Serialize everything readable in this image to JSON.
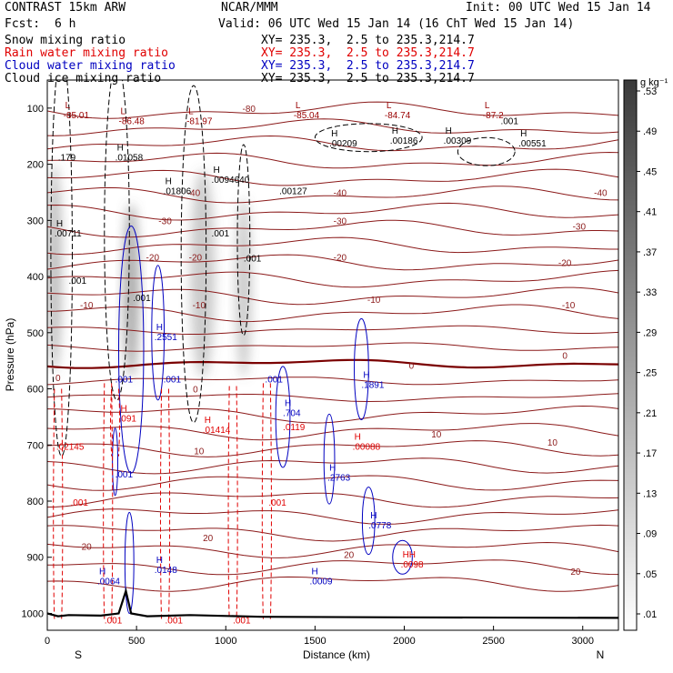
{
  "header": {
    "model": "CONTRAST 15km ARW",
    "org": "NCAR/MMM",
    "init": "Init: 00 UTC Wed 15 Jan 14",
    "fcst_label": "Fcst:",
    "fcst_value": "6 h",
    "valid": "Valid: 06 UTC Wed 15 Jan 14 (16 ChT Wed 15 Jan 14)",
    "fields": [
      {
        "name": "Snow mixing ratio",
        "xy": "XY= 235.3,  2.5 to 235.3,214.7",
        "color": "#000000"
      },
      {
        "name": "Rain water mixing ratio",
        "xy": "XY= 235.3,  2.5 to 235.3,214.7",
        "color": "#e00000"
      },
      {
        "name": "Cloud water mixing ratio",
        "xy": "XY= 235.3,  2.5 to 235.3,214.7",
        "color": "#0000c0"
      },
      {
        "name": "Cloud ice mixing ratio",
        "xy": "XY= 235.3,  2.5 to 235.3,214.7",
        "color": "#000000"
      }
    ]
  },
  "chart_data": {
    "type": "cross-section",
    "xlabel": "Distance (km)",
    "ylabel": "Pressure (hPa)",
    "xlim": [
      0,
      3200
    ],
    "ylim": [
      50,
      1030
    ],
    "xticks": [
      0,
      500,
      1000,
      1500,
      2000,
      2500,
      3000
    ],
    "yticks": [
      100,
      200,
      300,
      400,
      500,
      600,
      700,
      800,
      900,
      1000
    ],
    "x_end_labels": {
      "left": "S",
      "right": "N"
    },
    "colorbar": {
      "unit": "g kg⁻¹",
      "levels": [
        ".01",
        ".05",
        ".09",
        ".13",
        ".17",
        ".21",
        ".25",
        ".29",
        ".33",
        ".37",
        ".41",
        ".45",
        ".49",
        ".53"
      ]
    },
    "isotherms": [
      {
        "label": "-80",
        "x": 1130,
        "p": 100
      },
      {
        "label": "-40",
        "x": 820,
        "p": 250
      },
      {
        "label": "-40",
        "x": 1640,
        "p": 250
      },
      {
        "label": "-40",
        "x": 3100,
        "p": 250
      },
      {
        "label": "-30",
        "x": 660,
        "p": 300
      },
      {
        "label": "-30",
        "x": 1640,
        "p": 300
      },
      {
        "label": "-30",
        "x": 2980,
        "p": 310
      },
      {
        "label": "-20",
        "x": 590,
        "p": 365
      },
      {
        "label": "-20",
        "x": 830,
        "p": 365
      },
      {
        "label": "-20",
        "x": 1640,
        "p": 365
      },
      {
        "label": "-20",
        "x": 2900,
        "p": 375
      },
      {
        "label": "-10",
        "x": 220,
        "p": 450
      },
      {
        "label": "-10",
        "x": 850,
        "p": 450
      },
      {
        "label": "-10",
        "x": 1830,
        "p": 440
      },
      {
        "label": "-10",
        "x": 2920,
        "p": 450
      },
      {
        "label": "0",
        "x": 60,
        "p": 580
      },
      {
        "label": "0",
        "x": 830,
        "p": 600
      },
      {
        "label": "0",
        "x": 2040,
        "p": 558
      },
      {
        "label": "0",
        "x": 2900,
        "p": 540
      },
      {
        "label": "10",
        "x": 850,
        "p": 710
      },
      {
        "label": "10",
        "x": 2180,
        "p": 680
      },
      {
        "label": "10",
        "x": 2830,
        "p": 695
      },
      {
        "label": "20",
        "x": 220,
        "p": 880
      },
      {
        "label": "20",
        "x": 900,
        "p": 865
      },
      {
        "label": "20",
        "x": 1690,
        "p": 895
      },
      {
        "label": "20",
        "x": 2960,
        "p": 925
      }
    ],
    "extrema": [
      {
        "type": "L",
        "value": "-85.01",
        "x": 90,
        "p": 115,
        "color": "#990000"
      },
      {
        "type": "L",
        "value": "-86.48",
        "x": 400,
        "p": 125,
        "color": "#990000"
      },
      {
        "type": "L",
        "value": "-81.97",
        "x": 780,
        "p": 125,
        "color": "#990000"
      },
      {
        "type": "L",
        "value": "-85.04",
        "x": 1380,
        "p": 115,
        "color": "#990000"
      },
      {
        "type": "L",
        "value": "-84.74",
        "x": 1890,
        "p": 115,
        "color": "#990000"
      },
      {
        "type": "L",
        "value": "-87.2",
        "x": 2440,
        "p": 115,
        "color": "#990000"
      },
      {
        "type": "",
        "value": ".179",
        "x": 60,
        "p": 190,
        "color": "#000000"
      },
      {
        "type": "H",
        "value": ".01058",
        "x": 380,
        "p": 190,
        "color": "#000000"
      },
      {
        "type": "H",
        "value": ".01806",
        "x": 650,
        "p": 250,
        "color": "#000000"
      },
      {
        "type": "H",
        "value": ".0094640",
        "x": 920,
        "p": 230,
        "color": "#000000"
      },
      {
        "type": "",
        "value": ".00127",
        "x": 1300,
        "p": 250,
        "color": "#000000"
      },
      {
        "type": "H",
        "value": ".00209",
        "x": 1580,
        "p": 165,
        "color": "#000000"
      },
      {
        "type": "H",
        "value": ".00186",
        "x": 1920,
        "p": 160,
        "color": "#000000"
      },
      {
        "type": "H",
        "value": ".00309",
        "x": 2220,
        "p": 160,
        "color": "#000000"
      },
      {
        "type": "H",
        "value": ".00551",
        "x": 2640,
        "p": 165,
        "color": "#000000"
      },
      {
        "type": "",
        "value": ".001",
        "x": 2540,
        "p": 125,
        "color": "#000000"
      },
      {
        "type": "H",
        "value": ".00711",
        "x": 40,
        "p": 325,
        "color": "#000000"
      },
      {
        "type": "",
        "value": ".001",
        "x": 920,
        "p": 325,
        "color": "#000000"
      },
      {
        "type": "",
        "value": ".001",
        "x": 1100,
        "p": 370,
        "color": "#000000"
      },
      {
        "type": "",
        "value": ".001",
        "x": 120,
        "p": 410,
        "color": "#000000"
      },
      {
        "type": "",
        "value": ".001",
        "x": 480,
        "p": 440,
        "color": "#000000"
      },
      {
        "type": "H",
        "value": ".2551",
        "x": 600,
        "p": 510,
        "color": "#0000c0"
      },
      {
        "type": "",
        "value": ".001",
        "x": 380,
        "p": 585,
        "color": "#0000c0"
      },
      {
        "type": "",
        "value": ".001",
        "x": 650,
        "p": 585,
        "color": "#0000c0"
      },
      {
        "type": "",
        "value": ".001",
        "x": 1220,
        "p": 585,
        "color": "#0000c0"
      },
      {
        "type": "H",
        "value": ".1891",
        "x": 1760,
        "p": 595,
        "color": "#0000c0"
      },
      {
        "type": "H",
        "value": ".704",
        "x": 1320,
        "p": 645,
        "color": "#0000c0"
      },
      {
        "type": "",
        "value": ".0119",
        "x": 1320,
        "p": 670,
        "color": "#e00000"
      },
      {
        "type": "H",
        "value": ".091",
        "x": 400,
        "p": 655,
        "color": "#e00000"
      },
      {
        "type": "H",
        "value": ".01414",
        "x": 870,
        "p": 675,
        "color": "#e00000"
      },
      {
        "type": "",
        "value": ".02145",
        "x": 50,
        "p": 705,
        "color": "#e00000"
      },
      {
        "type": "H",
        "value": ".00088",
        "x": 1710,
        "p": 705,
        "color": "#e00000"
      },
      {
        "type": "",
        "value": ".001",
        "x": 380,
        "p": 755,
        "color": "#0000c0"
      },
      {
        "type": "H",
        "value": ".2763",
        "x": 1570,
        "p": 760,
        "color": "#0000c0"
      },
      {
        "type": "",
        "value": ".001",
        "x": 130,
        "p": 805,
        "color": "#e00000"
      },
      {
        "type": "",
        "value": ".001",
        "x": 1240,
        "p": 805,
        "color": "#e00000"
      },
      {
        "type": "H",
        "value": ".0778",
        "x": 1800,
        "p": 845,
        "color": "#0000c0"
      },
      {
        "type": "HH",
        "value": ".0098",
        "x": 1980,
        "p": 915,
        "color": "#e00000"
      },
      {
        "type": "H",
        "value": ".0064",
        "x": 280,
        "p": 945,
        "color": "#0000c0"
      },
      {
        "type": "H",
        "value": ".0148",
        "x": 600,
        "p": 925,
        "color": "#0000c0"
      },
      {
        "type": "H",
        "value": ".0009",
        "x": 1470,
        "p": 945,
        "color": "#0000c0"
      },
      {
        "type": "",
        "value": ".001",
        "x": 320,
        "p": 1015,
        "color": "#e00000"
      },
      {
        "type": "",
        "value": ".001",
        "x": 660,
        "p": 1015,
        "color": "#e00000"
      },
      {
        "type": "",
        "value": ".001",
        "x": 1040,
        "p": 1015,
        "color": "#e00000"
      }
    ],
    "snow_shading": [
      {
        "x": 40,
        "p_top": 200,
        "p_bot": 570,
        "halfwidth": 40,
        "intensity": 0.45
      },
      {
        "x": 470,
        "p_top": 270,
        "p_bot": 580,
        "halfwidth": 45,
        "intensity": 0.55
      },
      {
        "x": 870,
        "p_top": 210,
        "p_bot": 580,
        "halfwidth": 70,
        "intensity": 0.35
      },
      {
        "x": 1100,
        "p_top": 260,
        "p_bot": 580,
        "halfwidth": 45,
        "intensity": 0.35
      }
    ]
  }
}
